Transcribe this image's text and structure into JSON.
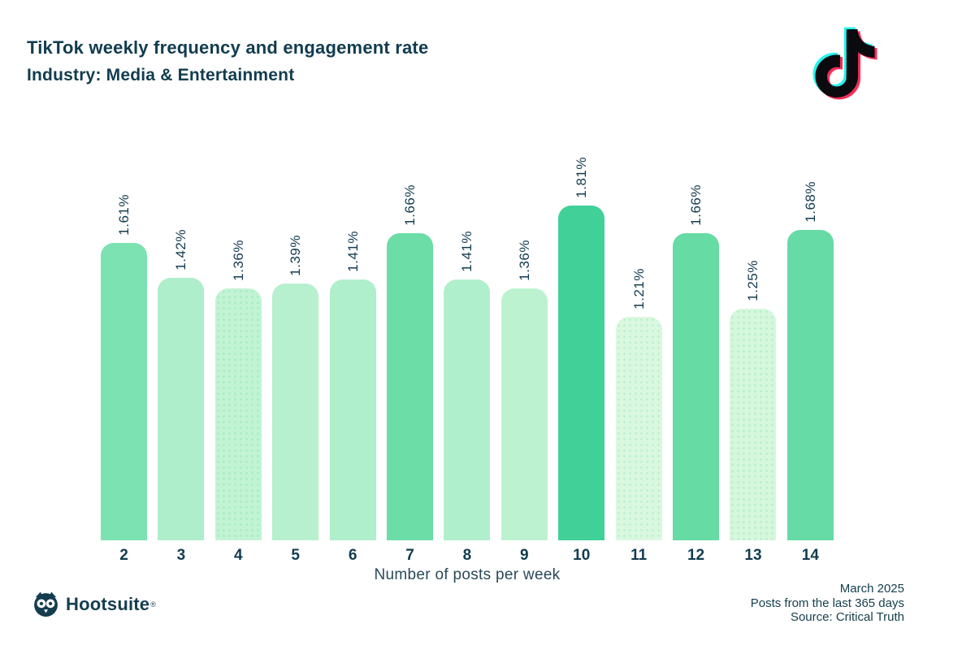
{
  "header": {
    "title": "TikTok weekly frequency and engagement rate",
    "subtitle": "Industry: Media & Entertainment"
  },
  "chart_data": {
    "type": "bar",
    "title": "TikTok weekly frequency and engagement rate",
    "subtitle": "Industry: Media & Entertainment",
    "categories": [
      "2",
      "3",
      "4",
      "5",
      "6",
      "7",
      "8",
      "9",
      "10",
      "11",
      "12",
      "13",
      "14"
    ],
    "values": [
      1.61,
      1.42,
      1.36,
      1.39,
      1.41,
      1.66,
      1.41,
      1.36,
      1.81,
      1.21,
      1.66,
      1.25,
      1.68
    ],
    "value_labels": [
      "1.61%",
      "1.42%",
      "1.36%",
      "1.39%",
      "1.41%",
      "1.66%",
      "1.41%",
      "1.36%",
      "1.81%",
      "1.21%",
      "1.66%",
      "1.25%",
      "1.68%"
    ],
    "bar_colors": [
      "#7DE2B1",
      "#AEEECA",
      "#C2F3D3",
      "#B7F0CE",
      "#B0EFCB",
      "#6CDDA7",
      "#B0EFCB",
      "#BDF2D1",
      "#41D098",
      "#DAF8DF",
      "#66DBA4",
      "#D5F7DB",
      "#66DBA6"
    ],
    "dotted_bars": [
      false,
      false,
      true,
      false,
      false,
      false,
      false,
      false,
      false,
      true,
      false,
      true,
      false
    ],
    "xlabel": "Number of posts per week",
    "ylabel": "",
    "ylim": [
      0,
      1.81
    ],
    "grid": false,
    "legend": false,
    "value_label_rotation": -90
  },
  "icons": {
    "tiktok_logo": "tiktok-note-logo",
    "hootsuite_owl": "hootsuite-owl-logo"
  },
  "brand_colors": {
    "tiktok_cyan": "#25F4EE",
    "tiktok_red": "#FE2C55",
    "tiktok_black": "#0B0B0F",
    "text_dark": "#113C4F",
    "axis_text": "#2A4A58"
  },
  "footer": {
    "hootsuite_label": "Hootsuite",
    "hootsuite_reg": "®",
    "date": "March 2025",
    "range": "Posts from the last 365 days",
    "source": "Source: Critical Truth"
  }
}
